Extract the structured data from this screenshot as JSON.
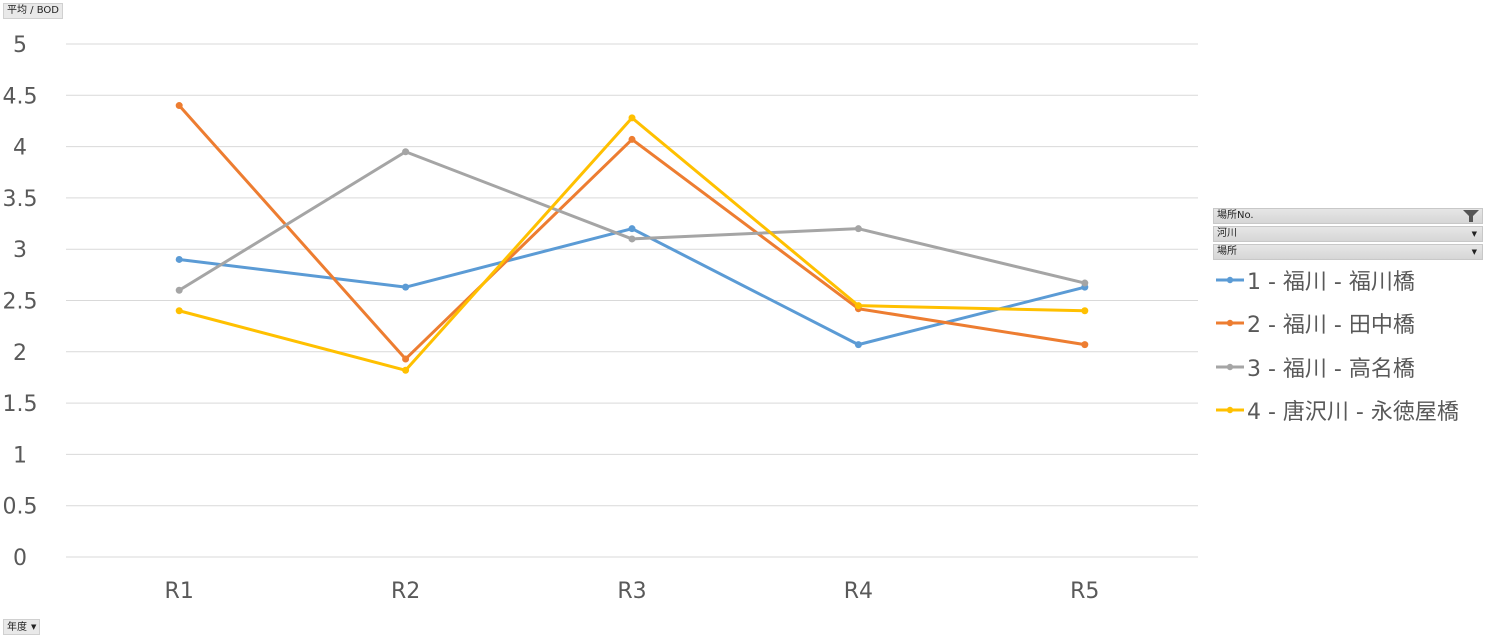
{
  "fields": {
    "value": "平均 / BOD",
    "row": "年度",
    "legend": [
      "場所No.",
      "河川",
      "場所"
    ]
  },
  "colors": {
    "series": [
      "#5b9bd5",
      "#ed7d31",
      "#a5a5a5",
      "#ffc000"
    ],
    "grid": "#d9d9d9"
  },
  "chart_data": {
    "type": "line",
    "categories": [
      "R1",
      "R2",
      "R3",
      "R4",
      "R5"
    ],
    "ylim": [
      0,
      5
    ],
    "yticks": [
      "0",
      "0.5",
      "1",
      "1.5",
      "2",
      "2.5",
      "3",
      "3.5",
      "4",
      "4.5",
      "5"
    ],
    "grid": true,
    "legend": "right",
    "series": [
      {
        "name": "1 - 福川 - 福川橋",
        "values": [
          2.9,
          2.63,
          3.2,
          2.07,
          2.63
        ]
      },
      {
        "name": "2 - 福川 - 田中橋",
        "values": [
          4.4,
          1.93,
          4.07,
          2.42,
          2.07
        ]
      },
      {
        "name": "3 - 福川 - 高名橋",
        "values": [
          2.6,
          3.95,
          3.1,
          3.2,
          2.67
        ]
      },
      {
        "name": "4 - 唐沢川 - 永徳屋橋",
        "values": [
          2.4,
          1.82,
          4.28,
          2.45,
          2.4
        ]
      }
    ]
  }
}
